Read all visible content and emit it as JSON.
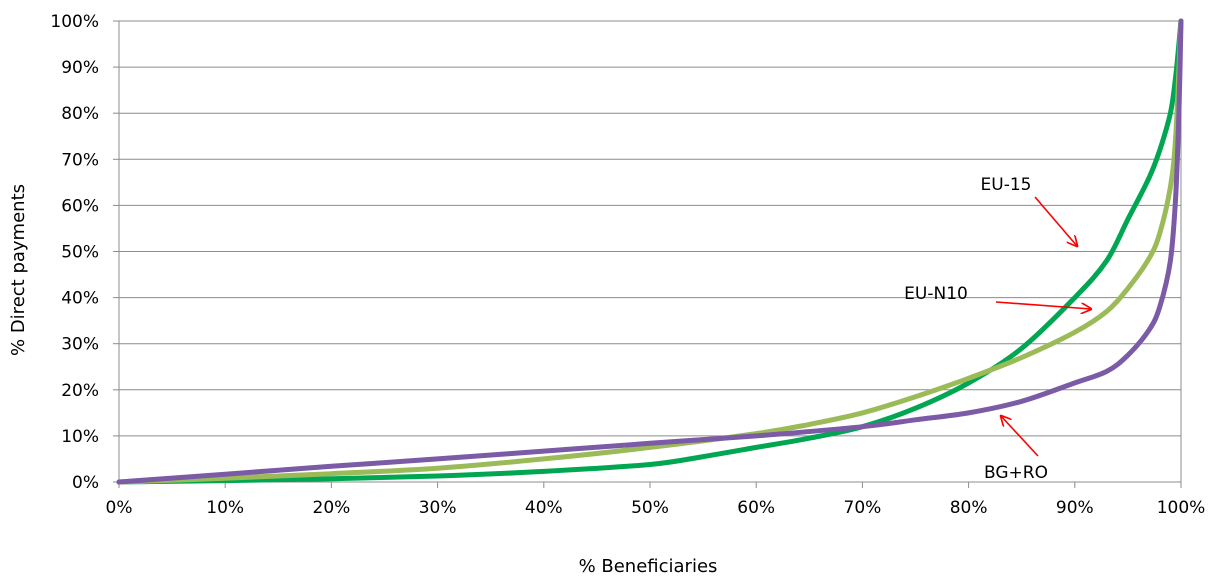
{
  "chart_data": {
    "type": "line",
    "title": "",
    "xlabel": "% Beneficiaries",
    "ylabel": "% Direct payments",
    "xlim": [
      0,
      100
    ],
    "ylim": [
      0,
      100
    ],
    "x_ticks": [
      "0%",
      "10%",
      "20%",
      "30%",
      "40%",
      "50%",
      "60%",
      "70%",
      "80%",
      "90%",
      "100%"
    ],
    "y_ticks": [
      "0%",
      "10%",
      "20%",
      "30%",
      "40%",
      "50%",
      "60%",
      "70%",
      "80%",
      "90%",
      "100%"
    ],
    "grid": "horizontal",
    "legend": "none",
    "series": [
      {
        "name": "EU-15",
        "color": "#00a651",
        "points": [
          [
            0,
            0
          ],
          [
            10,
            0.3
          ],
          [
            20,
            0.7
          ],
          [
            30,
            1.3
          ],
          [
            40,
            2.3
          ],
          [
            50,
            3.8
          ],
          [
            55,
            5.5
          ],
          [
            60,
            7.5
          ],
          [
            65,
            9.5
          ],
          [
            70,
            12
          ],
          [
            75,
            16
          ],
          [
            80,
            21.5
          ],
          [
            85,
            29
          ],
          [
            90,
            40
          ],
          [
            93,
            48
          ],
          [
            95,
            57
          ],
          [
            97,
            66
          ],
          [
            98,
            72
          ],
          [
            99,
            80
          ],
          [
            99.5,
            88
          ],
          [
            100,
            100
          ]
        ]
      },
      {
        "name": "EU-N10",
        "color": "#9bbb59",
        "points": [
          [
            0,
            0
          ],
          [
            10,
            0.8
          ],
          [
            20,
            1.8
          ],
          [
            30,
            3
          ],
          [
            40,
            5
          ],
          [
            50,
            7.5
          ],
          [
            60,
            10.5
          ],
          [
            65,
            12.5
          ],
          [
            70,
            15
          ],
          [
            75,
            18.5
          ],
          [
            80,
            22.5
          ],
          [
            85,
            27
          ],
          [
            90,
            32.5
          ],
          [
            93,
            37
          ],
          [
            95,
            42
          ],
          [
            97,
            48.5
          ],
          [
            98,
            54
          ],
          [
            99,
            64
          ],
          [
            99.5,
            75
          ],
          [
            100,
            100
          ]
        ]
      },
      {
        "name": "BG+RO",
        "color": "#7b5aa6",
        "points": [
          [
            0,
            0
          ],
          [
            10,
            1.7
          ],
          [
            20,
            3.4
          ],
          [
            30,
            5
          ],
          [
            40,
            6.7
          ],
          [
            50,
            8.4
          ],
          [
            60,
            10
          ],
          [
            70,
            12
          ],
          [
            75,
            13.5
          ],
          [
            80,
            15
          ],
          [
            85,
            17.5
          ],
          [
            90,
            21.5
          ],
          [
            93,
            24
          ],
          [
            95,
            27.5
          ],
          [
            97,
            33
          ],
          [
            98,
            38
          ],
          [
            99,
            48
          ],
          [
            99.5,
            62
          ],
          [
            99.8,
            80
          ],
          [
            100,
            100
          ]
        ]
      }
    ],
    "annotations": [
      {
        "text": "EU-15",
        "series": "EU-15"
      },
      {
        "text": "EU-N10",
        "series": "EU-N10"
      },
      {
        "text": "BG+RO",
        "series": "BG+RO"
      }
    ],
    "annotation_arrow_color": "#ff0000"
  }
}
